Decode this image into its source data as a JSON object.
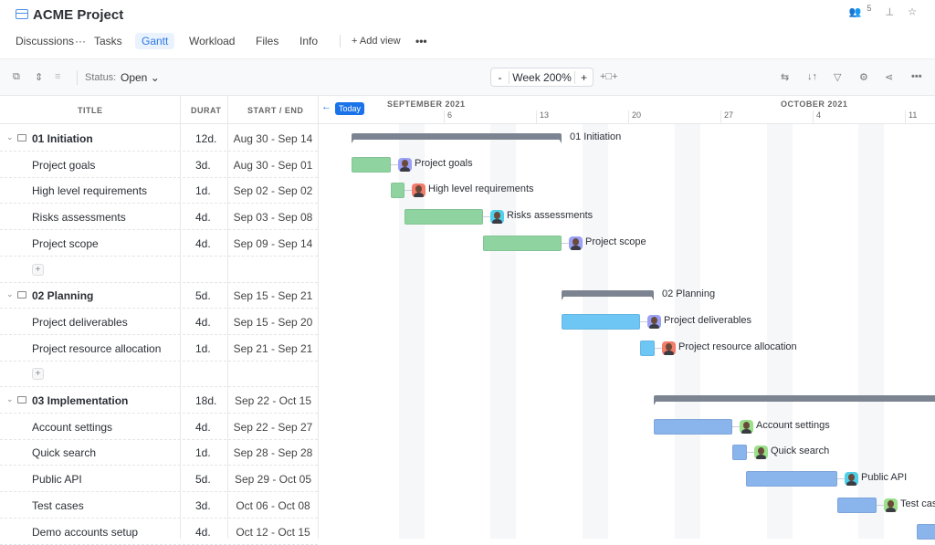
{
  "header": {
    "title": "ACME Project",
    "members_count": "5",
    "tabs": [
      {
        "label": "Discussions"
      },
      {
        "label": "···"
      },
      {
        "label": "Tasks"
      },
      {
        "label": "Gantt",
        "active": true
      },
      {
        "label": "Workload"
      },
      {
        "label": "Files"
      },
      {
        "label": "Info"
      }
    ],
    "add_view": "+ Add view",
    "more": "•••"
  },
  "toolbar": {
    "status_label": "Status:",
    "status_value": "Open",
    "zoom_minus": "-",
    "zoom_value": "Week 200%",
    "zoom_plus": "+"
  },
  "columns": {
    "title": "TITLE",
    "duration": "DURAT",
    "start_end": "START / END"
  },
  "timeline": {
    "today": "Today",
    "months": [
      "SEPTEMBER 2021",
      "OCTOBER 2021"
    ],
    "days": [
      "6",
      "13",
      "20",
      "27",
      "4",
      "11"
    ]
  },
  "colors": {
    "initiation": "#8fd4a0",
    "planning": "#6ec6f5",
    "implementation": "#8ab4ec",
    "summary": "#7d8491",
    "today": "#1a73e8"
  },
  "rows": [
    {
      "type": "group",
      "title": "01 Initiation",
      "duration": "12d.",
      "dates": "Aug 30 - Sep 14"
    },
    {
      "type": "task",
      "title": "Project goals",
      "duration": "3d.",
      "dates": "Aug 30 - Sep 01",
      "avatar": "#9aa0f5"
    },
    {
      "type": "task",
      "title": "High level requirements",
      "duration": "1d.",
      "dates": "Sep 02 - Sep 02",
      "avatar": "#f47c6a"
    },
    {
      "type": "task",
      "title": "Risks assessments",
      "duration": "4d.",
      "dates": "Sep 03 - Sep 08",
      "avatar": "#4fd0ea"
    },
    {
      "type": "task",
      "title": "Project scope",
      "duration": "4d.",
      "dates": "Sep 09 - Sep 14",
      "avatar": "#9aa0f5"
    },
    {
      "type": "add"
    },
    {
      "type": "group",
      "title": "02 Planning",
      "duration": "5d.",
      "dates": "Sep 15 - Sep 21"
    },
    {
      "type": "task",
      "title": "Project deliverables",
      "duration": "4d.",
      "dates": "Sep 15 - Sep 20",
      "avatar": "#9aa0f5"
    },
    {
      "type": "task",
      "title": "Project resource allocation",
      "duration": "1d.",
      "dates": "Sep 21 - Sep 21",
      "avatar": "#f47c6a"
    },
    {
      "type": "add"
    },
    {
      "type": "group",
      "title": "03 Implementation",
      "duration": "18d.",
      "dates": "Sep 22 - Oct 15"
    },
    {
      "type": "task",
      "title": "Account settings",
      "duration": "4d.",
      "dates": "Sep 22 - Sep 27",
      "avatar": "#9be08a"
    },
    {
      "type": "task",
      "title": "Quick search",
      "duration": "1d.",
      "dates": "Sep 28 - Sep 28",
      "avatar": "#9be08a"
    },
    {
      "type": "task",
      "title": "Public API",
      "duration": "5d.",
      "dates": "Sep 29 - Oct 05",
      "avatar": "#4fd0ea"
    },
    {
      "type": "task",
      "title": "Test cases",
      "duration": "3d.",
      "dates": "Oct 06 - Oct 08",
      "avatar": "#9be08a"
    },
    {
      "type": "task",
      "title": "Demo accounts setup",
      "duration": "4d.",
      "dates": "Oct 12 - Oct 15"
    }
  ]
}
